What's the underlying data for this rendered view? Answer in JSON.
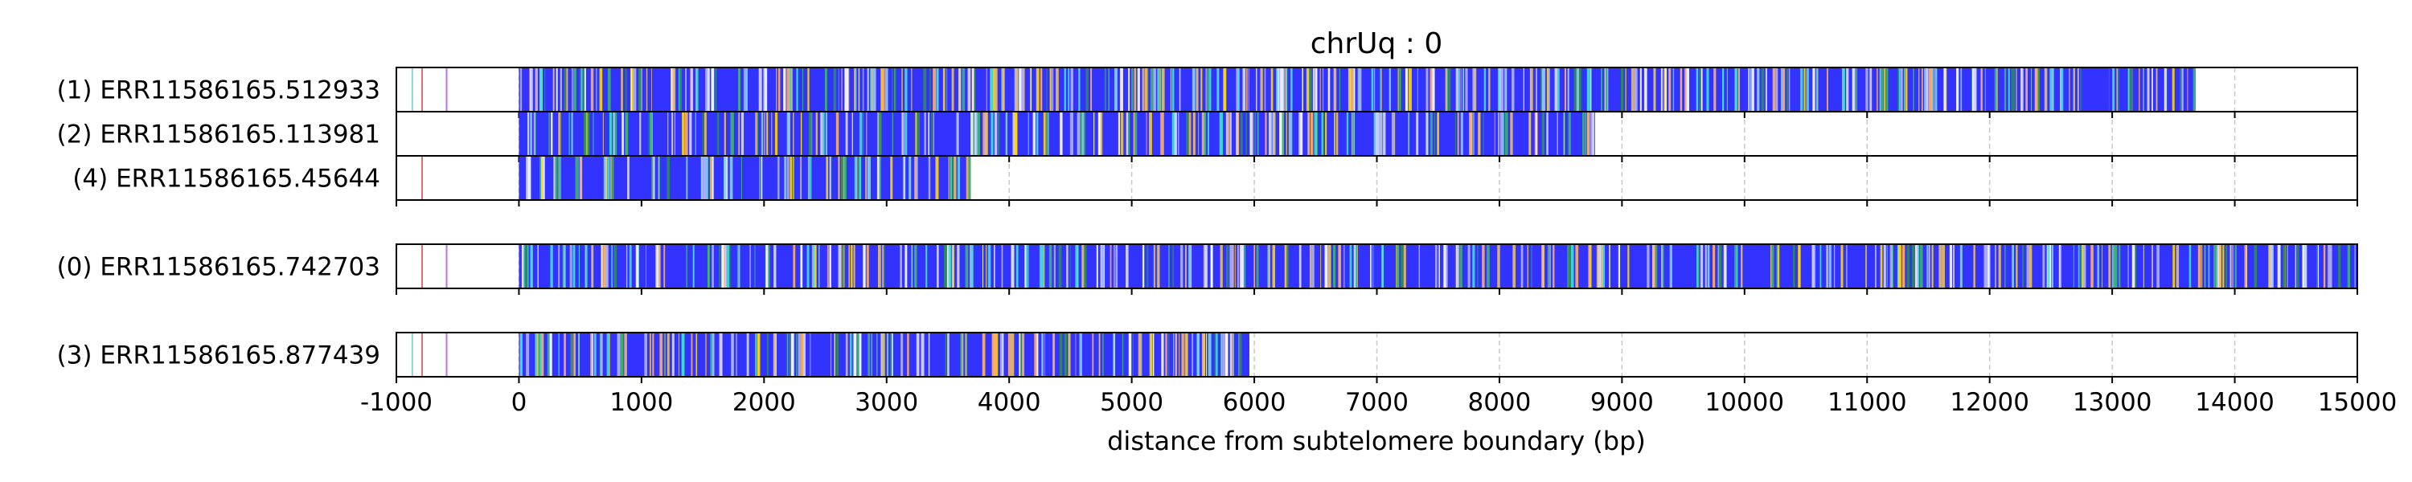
{
  "chart_data": {
    "type": "read-track",
    "title": "chrUq : 0",
    "xlabel": "distance from subtelomere boundary (bp)",
    "ylabel": "",
    "xlim": [
      -1000,
      15000
    ],
    "xticks": [
      -1000,
      0,
      1000,
      2000,
      3000,
      4000,
      5000,
      6000,
      7000,
      8000,
      9000,
      10000,
      11000,
      12000,
      13000,
      14000,
      15000
    ],
    "grid": "vertical dashed at x ticks",
    "groups": [
      {
        "reads": [
          {
            "label": "(1) ERR11586165.512933",
            "start": 0,
            "end": 13680,
            "density": 0.55,
            "seed": 11,
            "pre": [
              {
                "x": -870,
                "color": "#88d4d8"
              },
              {
                "x": -790,
                "color": "#e07070"
              },
              {
                "x": -590,
                "color": "#c070e0"
              }
            ]
          },
          {
            "label": "(2) ERR11586165.113981",
            "start": 0,
            "end": 8780,
            "density": 0.5,
            "seed": 22,
            "pre": []
          },
          {
            "label": "(4) ERR11586165.45644",
            "start": 0,
            "end": 3680,
            "density": 0.5,
            "seed": 33,
            "pre": [
              {
                "x": -790,
                "color": "#e07070"
              }
            ]
          }
        ]
      },
      {
        "reads": [
          {
            "label": "(0) ERR11586165.742703",
            "start": 0,
            "end": 15000,
            "density": 0.45,
            "seed": 44,
            "pre": [
              {
                "x": -790,
                "color": "#e07070"
              },
              {
                "x": -590,
                "color": "#c070e0"
              }
            ]
          }
        ]
      },
      {
        "reads": [
          {
            "label": "(3) ERR11586165.877439",
            "start": 0,
            "end": 5960,
            "density": 0.55,
            "seed": 55,
            "pre": [
              {
                "x": -870,
                "color": "#88d4d8"
              },
              {
                "x": -790,
                "color": "#e07070"
              },
              {
                "x": -590,
                "color": "#c070e0"
              }
            ]
          }
        ]
      }
    ],
    "colors": {
      "base": "#3333ff",
      "variants": [
        "#2e8b57",
        "#3cb371",
        "#87ceeb",
        "#ffffff",
        "#d8d8ff",
        "#b0b0ff",
        "#e8c060",
        "#ffd700",
        "#40e0d0",
        "#ffb060"
      ]
    }
  }
}
